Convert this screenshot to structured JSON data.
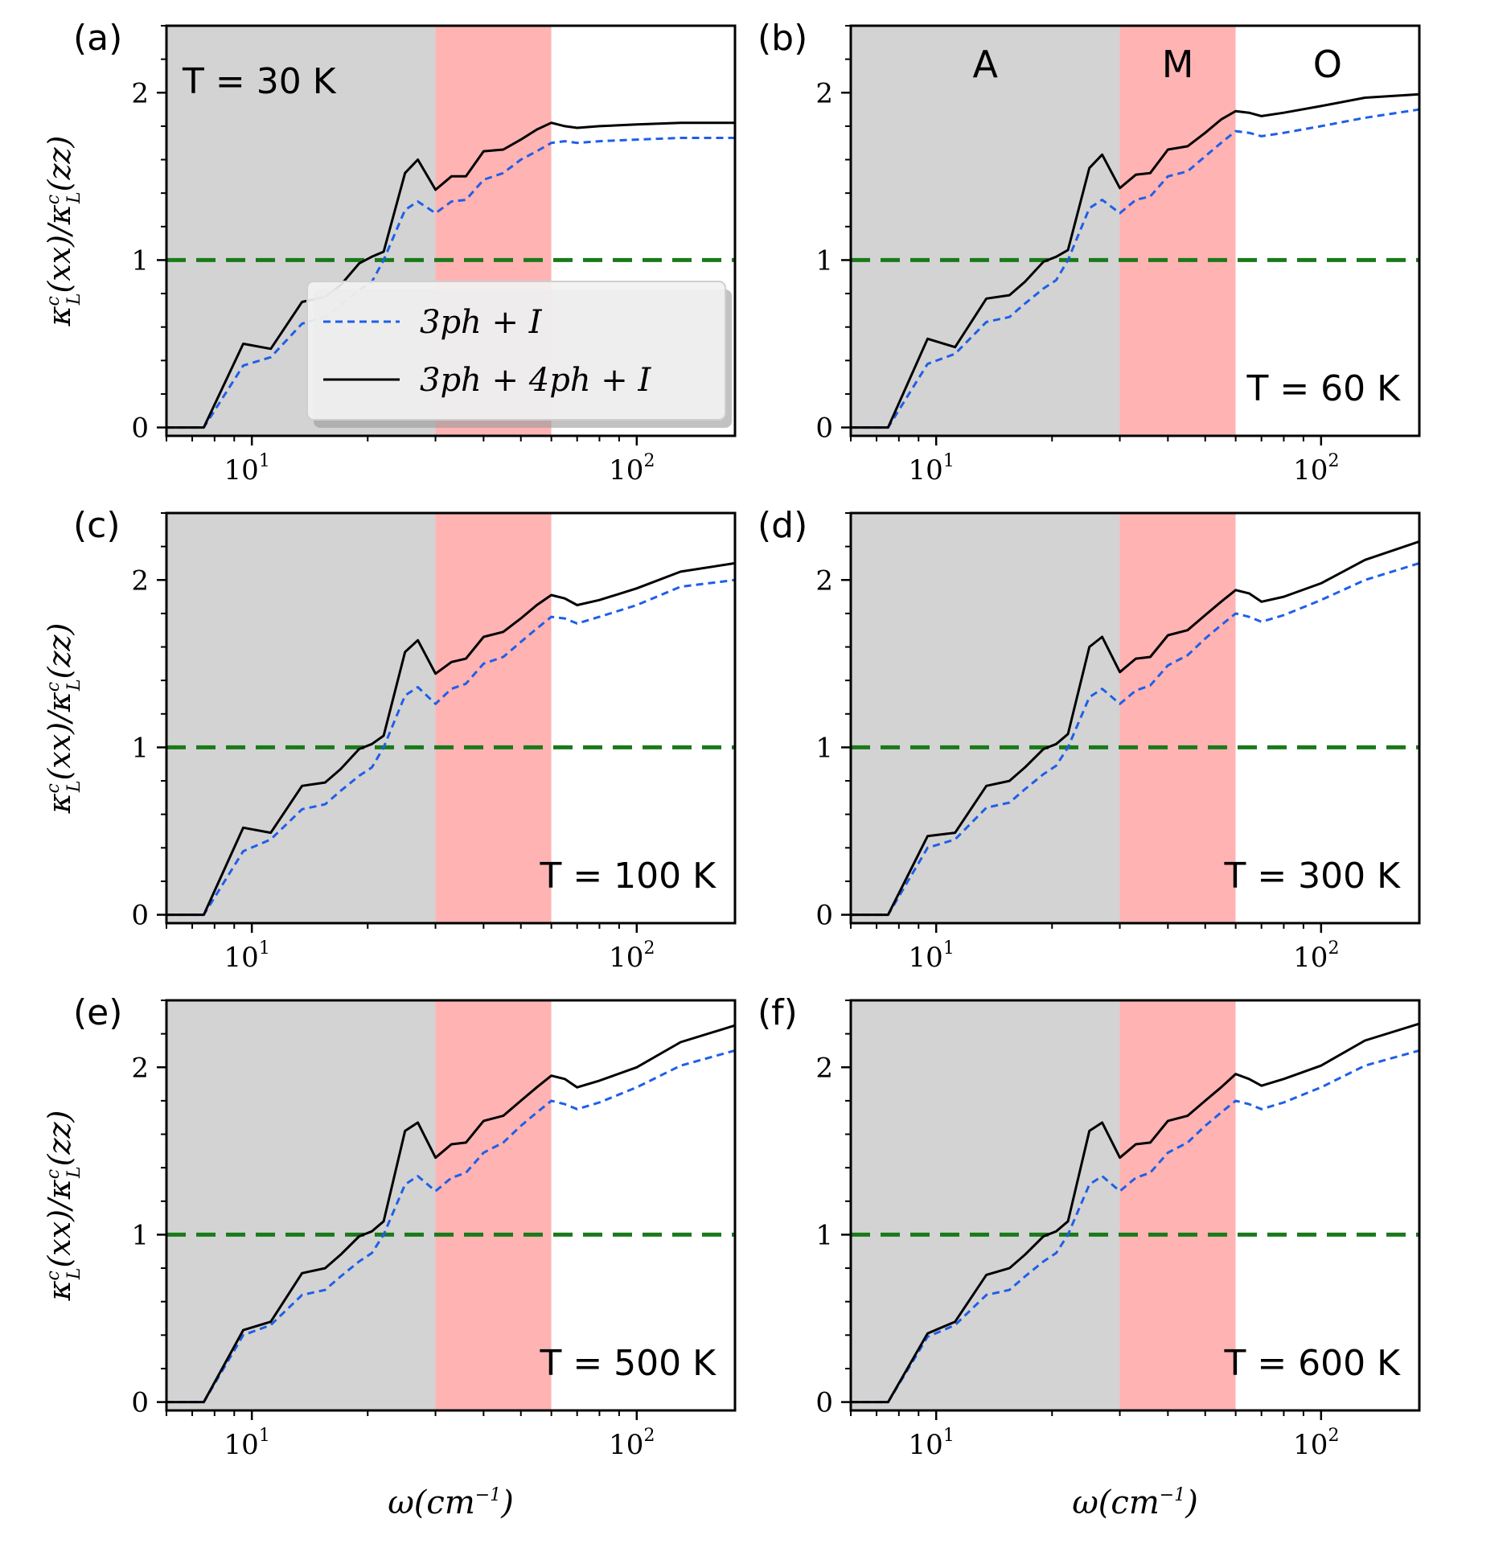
{
  "chart_data": [
    {
      "type": "line",
      "panel": "(a)",
      "annotation": "T = 30 K",
      "xscale": "log",
      "xlim": [
        6,
        180
      ],
      "ylim": [
        -0.05,
        2.4
      ],
      "region_labels": [],
      "legend": {
        "placement": "center-left",
        "entries": [
          "3ph + I",
          "3ph + 4ph + I"
        ]
      },
      "series": [
        {
          "name": "3ph + I",
          "x": [
            6,
            7.5,
            9.5,
            11.2,
            13.5,
            15.5,
            17,
            19,
            20.5,
            22,
            25,
            27,
            30,
            33,
            36,
            40,
            45,
            50,
            55,
            60,
            65,
            70,
            80,
            100,
            130,
            180
          ],
          "y": [
            0,
            0,
            0.37,
            0.42,
            0.62,
            0.66,
            0.73,
            0.82,
            0.87,
            1.0,
            1.3,
            1.35,
            1.28,
            1.35,
            1.36,
            1.48,
            1.52,
            1.6,
            1.65,
            1.7,
            1.71,
            1.7,
            1.71,
            1.72,
            1.73,
            1.73
          ]
        },
        {
          "name": "3ph + 4ph + I",
          "x": [
            6,
            7.5,
            9.5,
            11.2,
            13.5,
            15.5,
            17,
            19,
            20.5,
            22,
            25,
            27,
            30,
            33,
            36,
            40,
            45,
            50,
            55,
            60,
            65,
            70,
            80,
            100,
            130,
            180
          ],
          "y": [
            0,
            0,
            0.5,
            0.47,
            0.75,
            0.78,
            0.85,
            0.98,
            1.02,
            1.05,
            1.52,
            1.6,
            1.42,
            1.5,
            1.5,
            1.65,
            1.66,
            1.72,
            1.78,
            1.82,
            1.8,
            1.79,
            1.8,
            1.81,
            1.82,
            1.82
          ]
        },
        {
          "name": "reference",
          "x": [
            6,
            180
          ],
          "y": [
            1,
            1
          ]
        }
      ]
    },
    {
      "type": "line",
      "panel": "(b)",
      "annotation": "T = 60 K",
      "xscale": "log",
      "xlim": [
        6,
        180
      ],
      "ylim": [
        -0.05,
        2.4
      ],
      "region_labels": [
        "A",
        "M",
        "O"
      ],
      "series": [
        {
          "name": "3ph + I",
          "x": [
            6,
            7.5,
            9.5,
            11.2,
            13.5,
            15.5,
            17,
            19,
            20.5,
            22,
            25,
            27,
            30,
            33,
            36,
            40,
            45,
            50,
            55,
            60,
            65,
            70,
            80,
            100,
            130,
            180
          ],
          "y": [
            0,
            0,
            0.38,
            0.44,
            0.63,
            0.66,
            0.74,
            0.83,
            0.88,
            1.0,
            1.31,
            1.36,
            1.28,
            1.36,
            1.38,
            1.5,
            1.53,
            1.62,
            1.7,
            1.77,
            1.76,
            1.74,
            1.76,
            1.8,
            1.85,
            1.9
          ]
        },
        {
          "name": "3ph + 4ph + I",
          "x": [
            6,
            7.5,
            9.5,
            11.2,
            13.5,
            15.5,
            17,
            19,
            20.5,
            22,
            25,
            27,
            30,
            33,
            36,
            40,
            45,
            50,
            55,
            60,
            65,
            70,
            80,
            100,
            130,
            180
          ],
          "y": [
            0,
            0,
            0.53,
            0.48,
            0.77,
            0.79,
            0.87,
            0.99,
            1.02,
            1.06,
            1.55,
            1.63,
            1.43,
            1.51,
            1.52,
            1.66,
            1.68,
            1.76,
            1.84,
            1.89,
            1.88,
            1.86,
            1.88,
            1.92,
            1.97,
            1.99
          ]
        },
        {
          "name": "reference",
          "x": [
            6,
            180
          ],
          "y": [
            1,
            1
          ]
        }
      ]
    },
    {
      "type": "line",
      "panel": "(c)",
      "annotation": "T = 100 K",
      "xscale": "log",
      "xlim": [
        6,
        180
      ],
      "ylim": [
        -0.05,
        2.4
      ],
      "region_labels": [],
      "series": [
        {
          "name": "3ph + I",
          "x": [
            6,
            7.5,
            9.5,
            11.2,
            13.5,
            15.5,
            17,
            19,
            20.5,
            22,
            25,
            27,
            30,
            33,
            36,
            40,
            45,
            50,
            55,
            60,
            65,
            70,
            80,
            100,
            130,
            180
          ],
          "y": [
            0,
            0,
            0.38,
            0.45,
            0.63,
            0.66,
            0.74,
            0.83,
            0.88,
            1.0,
            1.31,
            1.36,
            1.26,
            1.35,
            1.38,
            1.5,
            1.54,
            1.63,
            1.71,
            1.78,
            1.77,
            1.74,
            1.78,
            1.85,
            1.96,
            2.0
          ]
        },
        {
          "name": "3ph + 4ph + I",
          "x": [
            6,
            7.5,
            9.5,
            11.2,
            13.5,
            15.5,
            17,
            19,
            20.5,
            22,
            25,
            27,
            30,
            33,
            36,
            40,
            45,
            50,
            55,
            60,
            65,
            70,
            80,
            100,
            130,
            180
          ],
          "y": [
            0,
            0,
            0.52,
            0.49,
            0.77,
            0.79,
            0.87,
            0.99,
            1.02,
            1.07,
            1.57,
            1.64,
            1.44,
            1.51,
            1.53,
            1.66,
            1.69,
            1.77,
            1.85,
            1.91,
            1.89,
            1.85,
            1.88,
            1.95,
            2.05,
            2.1
          ]
        },
        {
          "name": "reference",
          "x": [
            6,
            180
          ],
          "y": [
            1,
            1
          ]
        }
      ]
    },
    {
      "type": "line",
      "panel": "(d)",
      "annotation": "T = 300 K",
      "xscale": "log",
      "xlim": [
        6,
        180
      ],
      "ylim": [
        -0.05,
        2.4
      ],
      "region_labels": [],
      "series": [
        {
          "name": "3ph + I",
          "x": [
            6,
            7.5,
            9.5,
            11.2,
            13.5,
            15.5,
            17,
            19,
            20.5,
            22,
            25,
            27,
            30,
            33,
            36,
            40,
            45,
            50,
            55,
            60,
            65,
            70,
            80,
            100,
            130,
            180
          ],
          "y": [
            0,
            0,
            0.4,
            0.45,
            0.64,
            0.67,
            0.75,
            0.84,
            0.89,
            1.0,
            1.3,
            1.35,
            1.26,
            1.34,
            1.37,
            1.49,
            1.55,
            1.65,
            1.73,
            1.8,
            1.78,
            1.75,
            1.79,
            1.88,
            2.0,
            2.1
          ]
        },
        {
          "name": "3ph + 4ph + I",
          "x": [
            6,
            7.5,
            9.5,
            11.2,
            13.5,
            15.5,
            17,
            19,
            20.5,
            22,
            25,
            27,
            30,
            33,
            36,
            40,
            45,
            50,
            55,
            60,
            65,
            70,
            80,
            100,
            130,
            180
          ],
          "y": [
            0,
            0,
            0.47,
            0.49,
            0.77,
            0.8,
            0.88,
            0.99,
            1.02,
            1.08,
            1.6,
            1.66,
            1.45,
            1.53,
            1.54,
            1.67,
            1.7,
            1.79,
            1.87,
            1.94,
            1.92,
            1.87,
            1.9,
            1.98,
            2.12,
            2.23
          ]
        },
        {
          "name": "reference",
          "x": [
            6,
            180
          ],
          "y": [
            1,
            1
          ]
        }
      ]
    },
    {
      "type": "line",
      "panel": "(e)",
      "annotation": "T = 500 K",
      "xscale": "log",
      "xlim": [
        6,
        180
      ],
      "ylim": [
        -0.05,
        2.4
      ],
      "region_labels": [],
      "series": [
        {
          "name": "3ph + I",
          "x": [
            6,
            7.5,
            9.5,
            11.2,
            13.5,
            15.5,
            17,
            19,
            20.5,
            22,
            25,
            27,
            30,
            33,
            36,
            40,
            45,
            50,
            55,
            60,
            65,
            70,
            80,
            100,
            130,
            180
          ],
          "y": [
            0,
            0,
            0.4,
            0.46,
            0.64,
            0.67,
            0.75,
            0.84,
            0.89,
            1.0,
            1.3,
            1.35,
            1.26,
            1.34,
            1.37,
            1.49,
            1.55,
            1.65,
            1.73,
            1.8,
            1.78,
            1.75,
            1.79,
            1.88,
            2.01,
            2.1
          ]
        },
        {
          "name": "3ph + 4ph + I",
          "x": [
            6,
            7.5,
            9.5,
            11.2,
            13.5,
            15.5,
            17,
            19,
            20.5,
            22,
            25,
            27,
            30,
            33,
            36,
            40,
            45,
            50,
            55,
            60,
            65,
            70,
            80,
            100,
            130,
            180
          ],
          "y": [
            0,
            0,
            0.43,
            0.48,
            0.77,
            0.8,
            0.88,
            0.99,
            1.02,
            1.08,
            1.62,
            1.67,
            1.46,
            1.54,
            1.55,
            1.68,
            1.71,
            1.8,
            1.88,
            1.95,
            1.93,
            1.88,
            1.92,
            2.0,
            2.15,
            2.25
          ]
        },
        {
          "name": "reference",
          "x": [
            6,
            180
          ],
          "y": [
            1,
            1
          ]
        }
      ]
    },
    {
      "type": "line",
      "panel": "(f)",
      "annotation": "T = 600 K",
      "xscale": "log",
      "xlim": [
        6,
        180
      ],
      "ylim": [
        -0.05,
        2.4
      ],
      "region_labels": [],
      "series": [
        {
          "name": "3ph + I",
          "x": [
            6,
            7.5,
            9.5,
            11.2,
            13.5,
            15.5,
            17,
            19,
            20.5,
            22,
            25,
            27,
            30,
            33,
            36,
            40,
            45,
            50,
            55,
            60,
            65,
            70,
            80,
            100,
            130,
            180
          ],
          "y": [
            0,
            0,
            0.39,
            0.46,
            0.64,
            0.67,
            0.75,
            0.84,
            0.89,
            1.0,
            1.3,
            1.35,
            1.26,
            1.34,
            1.37,
            1.49,
            1.55,
            1.65,
            1.73,
            1.8,
            1.78,
            1.75,
            1.79,
            1.88,
            2.01,
            2.1
          ]
        },
        {
          "name": "3ph + 4ph + I",
          "x": [
            6,
            7.5,
            9.5,
            11.2,
            13.5,
            15.5,
            17,
            19,
            20.5,
            22,
            25,
            27,
            30,
            33,
            36,
            40,
            45,
            50,
            55,
            60,
            65,
            70,
            80,
            100,
            130,
            180
          ],
          "y": [
            0,
            0,
            0.41,
            0.48,
            0.76,
            0.8,
            0.88,
            0.99,
            1.02,
            1.08,
            1.62,
            1.67,
            1.46,
            1.54,
            1.55,
            1.68,
            1.71,
            1.8,
            1.88,
            1.96,
            1.93,
            1.89,
            1.93,
            2.01,
            2.16,
            2.26
          ]
        },
        {
          "name": "reference",
          "x": [
            6,
            180
          ],
          "y": [
            1,
            1
          ]
        }
      ]
    }
  ],
  "shared": {
    "shaded_regions": [
      {
        "label": "A",
        "x_range": [
          6,
          30
        ],
        "color": "#d3d3d3"
      },
      {
        "label": "M",
        "x_range": [
          30,
          60
        ],
        "color": "#ffb3b3"
      },
      {
        "label": "O",
        "x_range": [
          60,
          180
        ],
        "color": "#ffffff"
      }
    ],
    "y_ticks": [
      0,
      1,
      2
    ],
    "x_major_ticks": [
      10,
      100
    ],
    "x_tick_labels": [
      {
        "base": "10",
        "exp": "1"
      },
      {
        "base": "10",
        "exp": "2"
      }
    ],
    "y_axis_label": {
      "kappa": "κ",
      "sub": "L",
      "sup": "c",
      "num_arg": "(xx)",
      "den_arg": "(zz)",
      "slash": "/"
    },
    "x_axis_label": {
      "omega": "ω",
      "open": "(",
      "cm": "cm",
      "exp": "−1",
      "close": ")"
    },
    "colors": {
      "three_ph": "#1f5fe8",
      "four_ph": "#000000",
      "reference": "#1a7a1a",
      "acoustic_shade": "#d3d3d3",
      "mixed_shade": "#ffb3b3"
    }
  }
}
